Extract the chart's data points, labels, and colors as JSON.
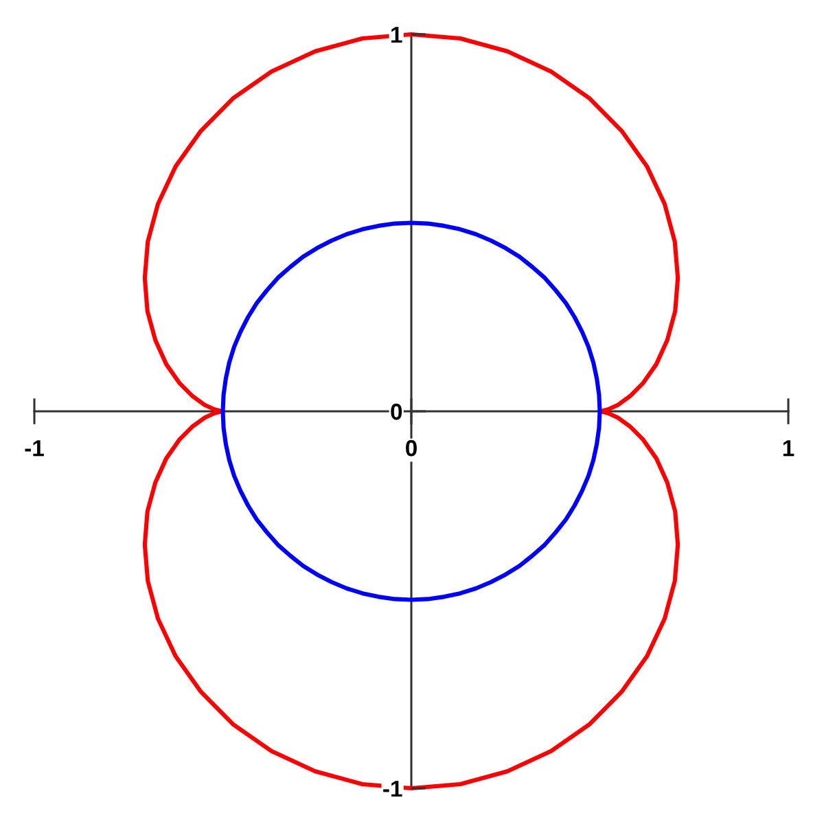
{
  "chart_data": {
    "type": "line",
    "xlim": [
      -1,
      1
    ],
    "ylim": [
      -1,
      1
    ],
    "xticks": [
      -1,
      0,
      1
    ],
    "yticks": [
      -1,
      0,
      1
    ],
    "line_style": "solid",
    "series": [
      {
        "color": "#ff0000",
        "x": [
          0.5,
          0.506,
          0.522,
          0.548,
          0.58,
          0.615,
          0.65,
          0.679,
          0.7,
          0.707,
          0.699,
          0.672,
          0.625,
          0.558,
          0.473,
          0.371,
          0.255,
          0.13,
          0.0,
          -0.13,
          -0.255,
          -0.371,
          -0.473,
          -0.558,
          -0.625,
          -0.672,
          -0.699,
          -0.707,
          -0.7,
          -0.679,
          -0.65,
          -0.615,
          -0.58,
          -0.548,
          -0.522,
          -0.506,
          -0.5
        ],
        "values": [
          0.0,
          0.001,
          0.005,
          0.017,
          0.04,
          0.075,
          0.125,
          0.189,
          0.266,
          0.354,
          0.45,
          0.55,
          0.65,
          0.744,
          0.83,
          0.901,
          0.955,
          0.989,
          1.0,
          0.989,
          0.955,
          0.901,
          0.83,
          0.744,
          0.65,
          0.55,
          0.45,
          0.354,
          0.266,
          0.189,
          0.125,
          0.075,
          0.04,
          0.017,
          0.005,
          0.001,
          0.0
        ]
      },
      {
        "color": "#ff0000",
        "x": [
          -0.5,
          -0.506,
          -0.522,
          -0.548,
          -0.58,
          -0.615,
          -0.65,
          -0.679,
          -0.7,
          -0.707,
          -0.699,
          -0.672,
          -0.625,
          -0.558,
          -0.473,
          -0.371,
          -0.255,
          -0.13,
          0.0,
          0.13,
          0.255,
          0.371,
          0.473,
          0.558,
          0.625,
          0.672,
          0.699,
          0.707,
          0.7,
          0.679,
          0.65,
          0.615,
          0.58,
          0.548,
          0.522,
          0.506,
          0.5
        ],
        "values": [
          0.0,
          -0.001,
          -0.005,
          -0.017,
          -0.04,
          -0.075,
          -0.125,
          -0.189,
          -0.266,
          -0.354,
          -0.45,
          -0.55,
          -0.65,
          -0.744,
          -0.83,
          -0.901,
          -0.955,
          -0.989,
          -1.0,
          -0.989,
          -0.955,
          -0.901,
          -0.83,
          -0.744,
          -0.65,
          -0.55,
          -0.45,
          -0.354,
          -0.266,
          -0.189,
          -0.125,
          -0.075,
          -0.04,
          -0.017,
          -0.005,
          -0.001,
          0.0
        ]
      },
      {
        "color": "#0000ff",
        "x": [
          0.5,
          0.498,
          0.492,
          0.483,
          0.47,
          0.453,
          0.433,
          0.41,
          0.383,
          0.354,
          0.321,
          0.287,
          0.25,
          0.211,
          0.171,
          0.129,
          0.087,
          0.044,
          0.0,
          -0.044,
          -0.087,
          -0.129,
          -0.171,
          -0.211,
          -0.25,
          -0.287,
          -0.321,
          -0.354,
          -0.383,
          -0.41,
          -0.433,
          -0.453,
          -0.47,
          -0.483,
          -0.492,
          -0.498,
          -0.5
        ],
        "values": [
          0.0,
          0.044,
          0.087,
          0.129,
          0.171,
          0.211,
          0.25,
          0.287,
          0.321,
          0.354,
          0.383,
          0.41,
          0.433,
          0.453,
          0.47,
          0.483,
          0.492,
          0.498,
          0.5,
          0.498,
          0.492,
          0.483,
          0.47,
          0.453,
          0.433,
          0.41,
          0.383,
          0.354,
          0.321,
          0.287,
          0.25,
          0.211,
          0.171,
          0.129,
          0.087,
          0.044,
          0.0
        ]
      },
      {
        "color": "#0000ff",
        "x": [
          -0.5,
          -0.498,
          -0.492,
          -0.483,
          -0.47,
          -0.453,
          -0.433,
          -0.41,
          -0.383,
          -0.354,
          -0.321,
          -0.287,
          -0.25,
          -0.211,
          -0.171,
          -0.129,
          -0.087,
          -0.044,
          0.0,
          0.044,
          0.087,
          0.129,
          0.171,
          0.211,
          0.25,
          0.287,
          0.321,
          0.354,
          0.383,
          0.41,
          0.433,
          0.453,
          0.47,
          0.483,
          0.492,
          0.498,
          0.5
        ],
        "values": [
          0.0,
          -0.044,
          -0.087,
          -0.129,
          -0.171,
          -0.211,
          -0.25,
          -0.287,
          -0.321,
          -0.354,
          -0.383,
          -0.41,
          -0.433,
          -0.453,
          -0.47,
          -0.483,
          -0.492,
          -0.498,
          -0.5,
          -0.498,
          -0.492,
          -0.483,
          -0.47,
          -0.453,
          -0.433,
          -0.41,
          -0.383,
          -0.354,
          -0.321,
          -0.287,
          -0.25,
          -0.211,
          -0.171,
          -0.129,
          -0.087,
          -0.044,
          0.0
        ]
      }
    ]
  }
}
